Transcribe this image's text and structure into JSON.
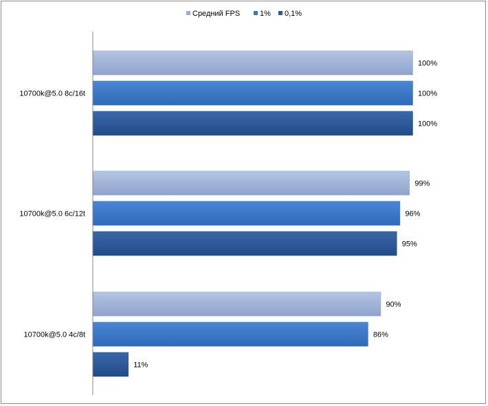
{
  "chart_data": {
    "type": "bar",
    "orientation": "horizontal",
    "categories": [
      "10700k@5.0  8c/16t",
      "10700k@5.0  6c/12t",
      "10700k@5.0  4c/8t"
    ],
    "series": [
      {
        "name": "Средний FPS",
        "values": [
          100,
          99,
          90
        ],
        "labels": [
          "100%",
          "99%",
          "90%"
        ],
        "color": "#9aaed4"
      },
      {
        "name": "1%",
        "values": [
          100,
          96,
          86
        ],
        "labels": [
          "100%",
          "96%",
          "86%"
        ],
        "color": "#3a76c4"
      },
      {
        "name": "0,1%",
        "values": [
          100,
          95,
          11
        ],
        "labels": [
          "100%",
          "95%",
          "11%"
        ],
        "color": "#2a5898"
      }
    ],
    "xlim": [
      0,
      100
    ],
    "grid": false,
    "legend_position": "top"
  }
}
